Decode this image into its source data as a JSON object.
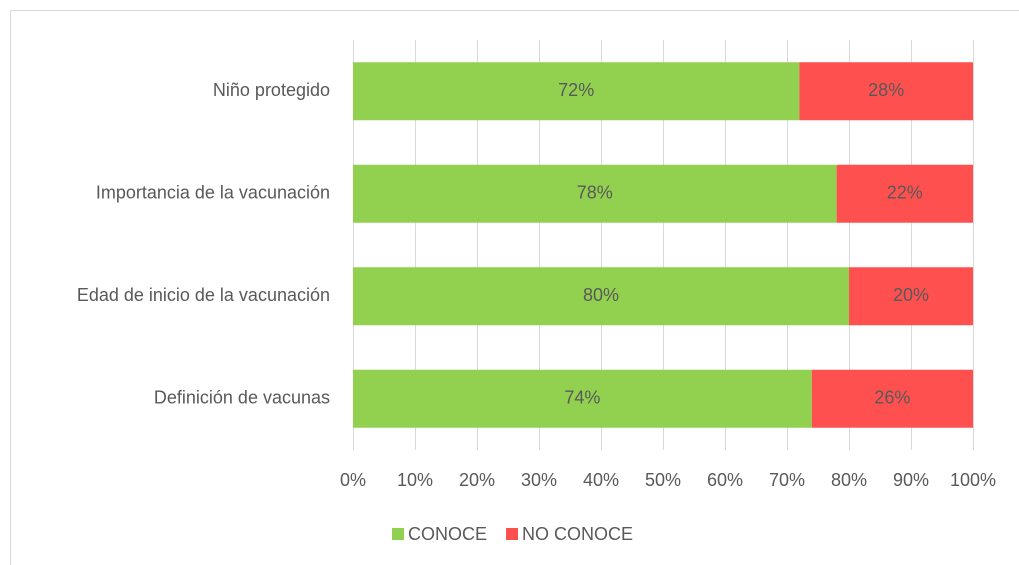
{
  "chart_data": {
    "type": "stacked-bar-horizontal",
    "categories": [
      "Niño protegido",
      "Importancia de la vacunación",
      "Edad de inicio de la vacunación",
      "Definición de vacunas"
    ],
    "series": [
      {
        "name": "CONOCE",
        "color": "#92d050",
        "values": [
          72,
          78,
          80,
          74
        ],
        "value_labels": [
          "72%",
          "78%",
          "80%",
          "74%"
        ]
      },
      {
        "name": "NO CONOCE",
        "color": "#ff5050",
        "values": [
          28,
          22,
          20,
          26
        ],
        "value_labels": [
          "28%",
          "22%",
          "20%",
          "26%"
        ]
      }
    ],
    "xlim": [
      0,
      100
    ],
    "xticks": [
      {
        "value": 0,
        "label": "0%"
      },
      {
        "value": 10,
        "label": "10%"
      },
      {
        "value": 20,
        "label": "20%"
      },
      {
        "value": 30,
        "label": "30%"
      },
      {
        "value": 40,
        "label": "40%"
      },
      {
        "value": 50,
        "label": "50%"
      },
      {
        "value": 60,
        "label": "60%"
      },
      {
        "value": 70,
        "label": "70%"
      },
      {
        "value": 80,
        "label": "80%"
      },
      {
        "value": 90,
        "label": "90%"
      },
      {
        "value": 100,
        "label": "100%"
      }
    ],
    "grid": true,
    "legend": "bottom"
  }
}
